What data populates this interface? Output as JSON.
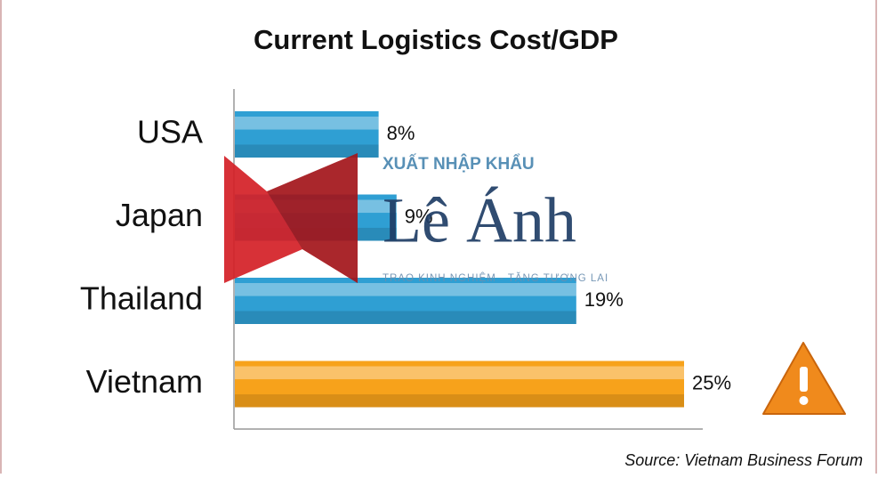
{
  "chart_data": {
    "type": "bar",
    "orientation": "horizontal",
    "title": "Current Logistics Cost/GDP",
    "categories": [
      "USA",
      "Japan",
      "Thailand",
      "Vietnam"
    ],
    "values": [
      8,
      9,
      19,
      25
    ],
    "value_labels": [
      "8%",
      "9%",
      "19%",
      "25%"
    ],
    "colors": [
      "#2f9fd3",
      "#2f9fd3",
      "#2f9fd3",
      "#f7a21b"
    ],
    "source": "Source: Vietnam Business Forum"
  },
  "watermark": {
    "top": "XUẤT NHẬP KHẨU",
    "name": "Lê Ánh",
    "slogan": "TRAO KINH NGHIỆM - TẶNG TƯƠNG LAI"
  }
}
